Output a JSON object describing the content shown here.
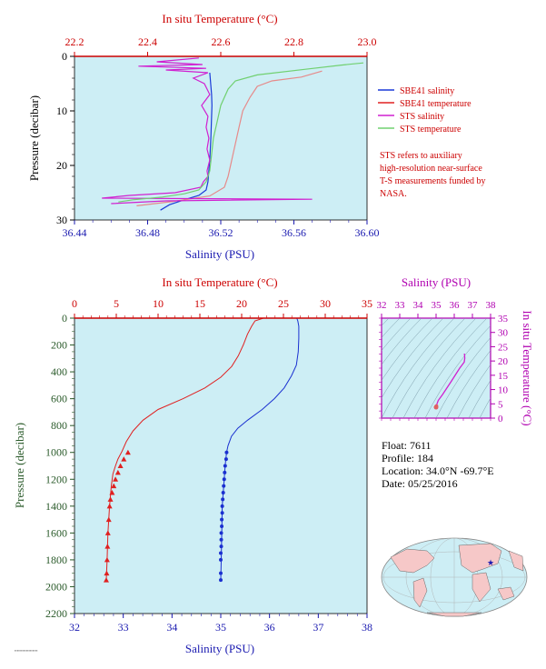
{
  "chart_data": [
    {
      "type": "line",
      "title": "",
      "top_axis_label": "In situ Temperature (°C)",
      "xlabel": "Salinity (PSU)",
      "ylabel": "Pressure (decibar)",
      "top_ticks": [
        "22.2",
        "22.4",
        "22.6",
        "22.8",
        "23.0"
      ],
      "top_range": [
        22.2,
        23.0
      ],
      "x_ticks": [
        "36.44",
        "36.48",
        "36.52",
        "36.56",
        "36.60"
      ],
      "xlim": [
        36.44,
        36.6
      ],
      "y_ticks": [
        "0",
        "10",
        "20",
        "30"
      ],
      "ylim": [
        0,
        30
      ],
      "y_inverted": true,
      "grid": false,
      "legend_position": "right",
      "series": [
        {
          "name": "SBE41 salinity",
          "axis": "salinity",
          "color": "#1a3ad8",
          "x": [
            36.514,
            36.5145,
            36.515,
            36.5152,
            36.515,
            36.5148,
            36.5146,
            36.5143,
            36.514,
            36.5135,
            36.513,
            36.512,
            36.508,
            36.5,
            36.492,
            36.487
          ],
          "y": [
            3,
            5,
            7,
            9,
            11,
            13,
            15,
            17,
            19,
            21,
            23,
            24.5,
            25.5,
            26.3,
            27.2,
            28.2
          ]
        },
        {
          "name": "SBE41 temperature",
          "axis": "temperature",
          "color": "#e68a8a",
          "x": [
            22.877,
            22.82,
            22.74,
            22.7,
            22.68,
            22.66,
            22.65,
            22.64,
            22.63,
            22.62,
            22.61,
            22.57,
            22.47,
            22.37
          ],
          "y": [
            2.7,
            3.8,
            4.5,
            5.5,
            7.5,
            10,
            13,
            16,
            19,
            22,
            24,
            25.6,
            26.6,
            27.4
          ]
        },
        {
          "name": "STS salinity",
          "axis": "salinity",
          "color": "#d020d0",
          "x": [
            36.508,
            36.485,
            36.51,
            36.475,
            36.512,
            36.49,
            36.513,
            36.505,
            36.511,
            36.514,
            36.5095,
            36.513,
            36.512,
            36.5135,
            36.5125,
            36.514,
            36.5125,
            36.513,
            36.5105,
            36.509,
            36.495,
            36.47,
            36.455,
            36.57,
            36.49,
            36.46
          ],
          "y": [
            0.3,
            1,
            1.5,
            1.8,
            2.2,
            2.5,
            3,
            4,
            5,
            7,
            9,
            11,
            13,
            15,
            17,
            19,
            21,
            22,
            23,
            24,
            25,
            25.5,
            26,
            26.2,
            26.5,
            27
          ]
        },
        {
          "name": "STS temperature",
          "axis": "temperature",
          "color": "#70d070",
          "x": [
            22.99,
            22.93,
            22.84,
            22.7,
            22.64,
            22.62,
            22.6,
            22.59,
            22.58,
            22.575,
            22.57,
            22.56,
            22.54,
            22.5,
            22.44,
            22.36,
            22.32
          ],
          "y": [
            1.2,
            1.6,
            2.3,
            3.4,
            4.5,
            6,
            9,
            12,
            15,
            18,
            21,
            23,
            24.5,
            25.2,
            25.8,
            26.3,
            26.7
          ]
        }
      ],
      "note": "STS refers to auxiliary high-resolution near-surface T-S measurements funded by NASA."
    },
    {
      "type": "line",
      "title": "",
      "top_axis_label": "In situ Temperature (°C)",
      "xlabel": "Salinity (PSU)",
      "ylabel": "Pressure (decibar)",
      "top_ticks": [
        "0",
        "5",
        "10",
        "15",
        "20",
        "25",
        "30",
        "35"
      ],
      "top_range": [
        0,
        35
      ],
      "x_ticks": [
        "32",
        "33",
        "34",
        "35",
        "36",
        "37",
        "38"
      ],
      "xlim": [
        32,
        38
      ],
      "y_ticks": [
        "0",
        "200",
        "400",
        "600",
        "800",
        "1000",
        "1200",
        "1400",
        "1600",
        "1800",
        "2000",
        "2200"
      ],
      "ylim": [
        0,
        2200
      ],
      "y_inverted": true,
      "grid": false,
      "series": [
        {
          "name": "Temperature",
          "axis": "temperature",
          "color": "#e02020",
          "marker": "triangle",
          "x": [
            22.6,
            21.6,
            21.2,
            20.7,
            20.2,
            19.6,
            18.8,
            17.5,
            15.6,
            13.0,
            10.0,
            8.2,
            7.0,
            6.2,
            5.7,
            5.2,
            4.9,
            4.6,
            4.4,
            4.2,
            4.0,
            3.9,
            3.8
          ],
          "y": [
            0,
            20,
            60,
            120,
            200,
            280,
            360,
            440,
            520,
            600,
            680,
            760,
            840,
            920,
            990,
            1050,
            1100,
            1160,
            1250,
            1400,
            1600,
            1800,
            1950
          ],
          "marker_x": [
            6.4,
            5.9,
            5.5,
            5.2,
            4.9,
            4.7,
            4.5,
            4.3,
            4.2,
            4.1,
            4.0,
            3.95,
            3.9,
            3.85,
            3.8
          ],
          "marker_y": [
            1000,
            1050,
            1100,
            1150,
            1200,
            1250,
            1300,
            1350,
            1400,
            1500,
            1600,
            1700,
            1800,
            1900,
            1950
          ]
        },
        {
          "name": "Salinity",
          "axis": "salinity",
          "color": "#1a30d0",
          "marker": "circle",
          "x": [
            36.56,
            36.58,
            36.6,
            36.6,
            36.59,
            36.55,
            36.45,
            36.3,
            36.1,
            35.85,
            35.55,
            35.35,
            35.22,
            35.15,
            35.12,
            35.09,
            35.07,
            35.05,
            35.03,
            35.02,
            35.01,
            35.0
          ],
          "y": [
            0,
            20,
            60,
            150,
            250,
            350,
            430,
            520,
            600,
            680,
            760,
            820,
            880,
            950,
            1000,
            1100,
            1200,
            1300,
            1400,
            1600,
            1800,
            1950
          ],
          "marker_x": [
            35.12,
            35.11,
            35.09,
            35.08,
            35.07,
            35.06,
            35.05,
            35.04,
            35.03,
            35.03,
            35.02,
            35.02,
            35.01,
            35.01,
            35.01,
            35.0,
            35.0,
            35.0,
            35.0
          ],
          "marker_y": [
            1000,
            1050,
            1100,
            1150,
            1200,
            1250,
            1300,
            1350,
            1400,
            1450,
            1500,
            1550,
            1600,
            1650,
            1700,
            1750,
            1800,
            1900,
            1950
          ]
        }
      ]
    },
    {
      "type": "line",
      "title": "",
      "top_axis_label": "Salinity (PSU)",
      "right_axis_label": "In situ Temperature (°C)",
      "top_ticks": [
        "32",
        "33",
        "34",
        "35",
        "36",
        "37",
        "38"
      ],
      "xlim": [
        32,
        38
      ],
      "right_ticks": [
        "0",
        "5",
        "10",
        "15",
        "20",
        "25",
        "30",
        "35"
      ],
      "ylim": [
        0,
        35
      ],
      "series": [
        {
          "name": "T-S",
          "color": "#d020d0",
          "x": [
            36.56,
            36.58,
            36.55,
            36.3,
            35.85,
            35.35,
            35.12,
            35.05,
            35.02,
            35.0
          ],
          "y": [
            22.6,
            21.0,
            19.6,
            17.5,
            13.0,
            8.2,
            6.2,
            5.0,
            4.2,
            3.8
          ]
        }
      ]
    }
  ],
  "float_info": {
    "float": "Float:  7611",
    "profile": "Profile:  184",
    "location": "Location:  34.0°N  -69.7°E",
    "date": "Date:  05/25/2016"
  },
  "colors": {
    "plot_bg": "#cdeef5",
    "axis_red": "#cc0000",
    "axis_blue": "#1a1ab0",
    "axis_green": "#2a5a2a",
    "axis_magenta": "#b000b0"
  }
}
